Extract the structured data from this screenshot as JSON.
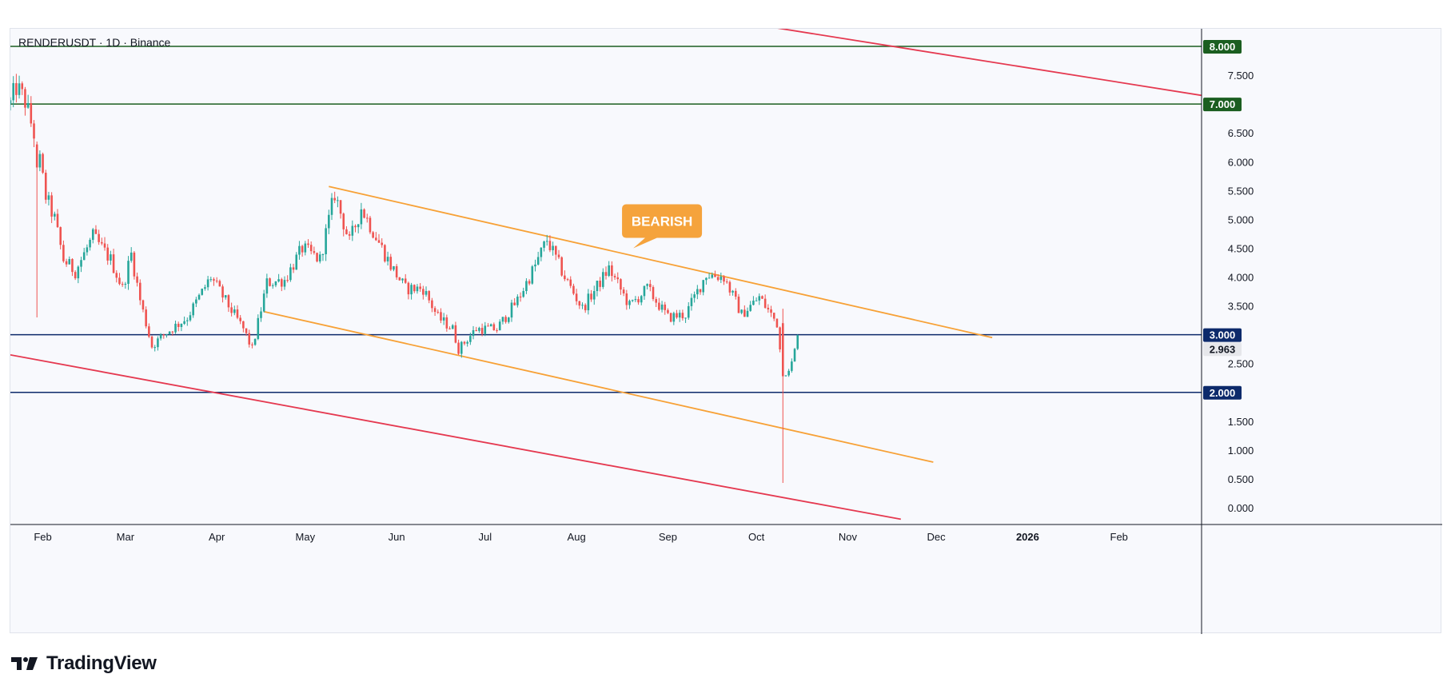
{
  "header": {
    "symbol_line": "RENDERUSDT · 1D · Binance"
  },
  "brand": {
    "name": "TradingView"
  },
  "colors": {
    "up": "#26a69a",
    "down": "#ef5350",
    "resistance_green": "#1b5e20",
    "support_blue": "#0d2a6b",
    "orange_channel": "#f7a136",
    "red_channel": "#e53950",
    "annotation_bg": "#f5a33c",
    "last_price_bg": "#e6e7eb"
  },
  "chart_data": {
    "type": "candlestick",
    "symbol": "RENDERUSDT",
    "interval": "1D",
    "exchange": "Binance",
    "x_ticks": [
      "Feb",
      "Mar",
      "Apr",
      "May",
      "Jun",
      "Jul",
      "Aug",
      "Sep",
      "Oct",
      "Nov",
      "Dec",
      "2026",
      "Feb"
    ],
    "y_ticks": [
      "0.000",
      "0.500",
      "1.000",
      "1.500",
      "2.000",
      "2.500",
      "3.000",
      "3.500",
      "4.000",
      "4.500",
      "5.000",
      "5.500",
      "6.000",
      "6.500",
      "7.000",
      "7.500",
      "8.000"
    ],
    "ylim": [
      -0.2,
      8.4
    ],
    "xrange": [
      "2025-01-21",
      "2026-03-01"
    ],
    "last_price": "2.963",
    "horizontal_levels": [
      {
        "value": 8.0,
        "label": "8.000",
        "color": "#1b5e20"
      },
      {
        "value": 7.0,
        "label": "7.000",
        "color": "#1b5e20"
      },
      {
        "value": 3.0,
        "label": "3.000",
        "color": "#0d2a6b"
      },
      {
        "value": 2.0,
        "label": "2.000",
        "color": "#0d2a6b"
      }
    ],
    "trendlines": [
      {
        "name": "orange-upper",
        "color": "#f7a136",
        "from": [
          "2025-05-09",
          5.57
        ],
        "to": [
          "2025-12-20",
          2.95
        ]
      },
      {
        "name": "orange-lower",
        "color": "#f7a136",
        "from": [
          "2025-04-17",
          3.4
        ],
        "to": [
          "2025-11-30",
          0.79
        ]
      },
      {
        "name": "red-upper",
        "color": "#e53950",
        "from": [
          "2025-09-28",
          8.4
        ],
        "to": [
          "2026-03-01",
          7.15
        ]
      },
      {
        "name": "red-lower",
        "color": "#e53950",
        "from": [
          "2025-01-21",
          2.65
        ],
        "to": [
          "2025-11-19",
          -0.2
        ]
      }
    ],
    "annotation": {
      "text": "BEARISH",
      "date": "2025-08-30",
      "value": 4.97
    },
    "anchors": [
      [
        "2025-01-21",
        7.0
      ],
      [
        "2025-01-23",
        7.3
      ],
      [
        "2025-01-26",
        7.05
      ],
      [
        "2025-01-30",
        6.3
      ],
      [
        "2025-02-02",
        5.4
      ],
      [
        "2025-02-05",
        5.0
      ],
      [
        "2025-02-08",
        4.3
      ],
      [
        "2025-02-12",
        4.1
      ],
      [
        "2025-02-18",
        4.7
      ],
      [
        "2025-02-24",
        4.3
      ],
      [
        "2025-02-28",
        3.8
      ],
      [
        "2025-03-03",
        4.4
      ],
      [
        "2025-03-06",
        3.6
      ],
      [
        "2025-03-10",
        2.8
      ],
      [
        "2025-03-14",
        3.0
      ],
      [
        "2025-03-22",
        3.3
      ],
      [
        "2025-03-30",
        4.0
      ],
      [
        "2025-04-05",
        3.5
      ],
      [
        "2025-04-10",
        3.1
      ],
      [
        "2025-04-13",
        2.75
      ],
      [
        "2025-04-18",
        3.9
      ],
      [
        "2025-04-24",
        3.95
      ],
      [
        "2025-04-30",
        4.5
      ],
      [
        "2025-05-06",
        4.3
      ],
      [
        "2025-05-11",
        5.45
      ],
      [
        "2025-05-16",
        4.6
      ],
      [
        "2025-05-20",
        5.2
      ],
      [
        "2025-05-24",
        4.8
      ],
      [
        "2025-05-30",
        4.2
      ],
      [
        "2025-06-04",
        3.8
      ],
      [
        "2025-06-10",
        3.8
      ],
      [
        "2025-06-15",
        3.3
      ],
      [
        "2025-06-20",
        3.1
      ],
      [
        "2025-06-22",
        2.75
      ],
      [
        "2025-06-28",
        3.1
      ],
      [
        "2025-07-05",
        3.1
      ],
      [
        "2025-07-12",
        3.6
      ],
      [
        "2025-07-18",
        4.2
      ],
      [
        "2025-07-22",
        4.65
      ],
      [
        "2025-07-28",
        4.0
      ],
      [
        "2025-08-03",
        3.45
      ],
      [
        "2025-08-12",
        4.15
      ],
      [
        "2025-08-19",
        3.5
      ],
      [
        "2025-08-25",
        3.8
      ],
      [
        "2025-09-01",
        3.3
      ],
      [
        "2025-09-07",
        3.35
      ],
      [
        "2025-09-14",
        4.05
      ],
      [
        "2025-09-20",
        4.0
      ],
      [
        "2025-09-26",
        3.35
      ],
      [
        "2025-10-02",
        3.65
      ],
      [
        "2025-10-08",
        3.2
      ],
      [
        "2025-10-10",
        2.3
      ],
      [
        "2025-10-13",
        2.5
      ],
      [
        "2025-10-15",
        2.95
      ]
    ],
    "special_candles": [
      {
        "date": "2025-10-10",
        "open": 3.2,
        "high": 3.45,
        "low": 0.43,
        "close": 2.28
      },
      {
        "date": "2025-01-30",
        "open": 6.3,
        "high": 6.35,
        "low": 3.3,
        "close": 5.9
      }
    ]
  }
}
